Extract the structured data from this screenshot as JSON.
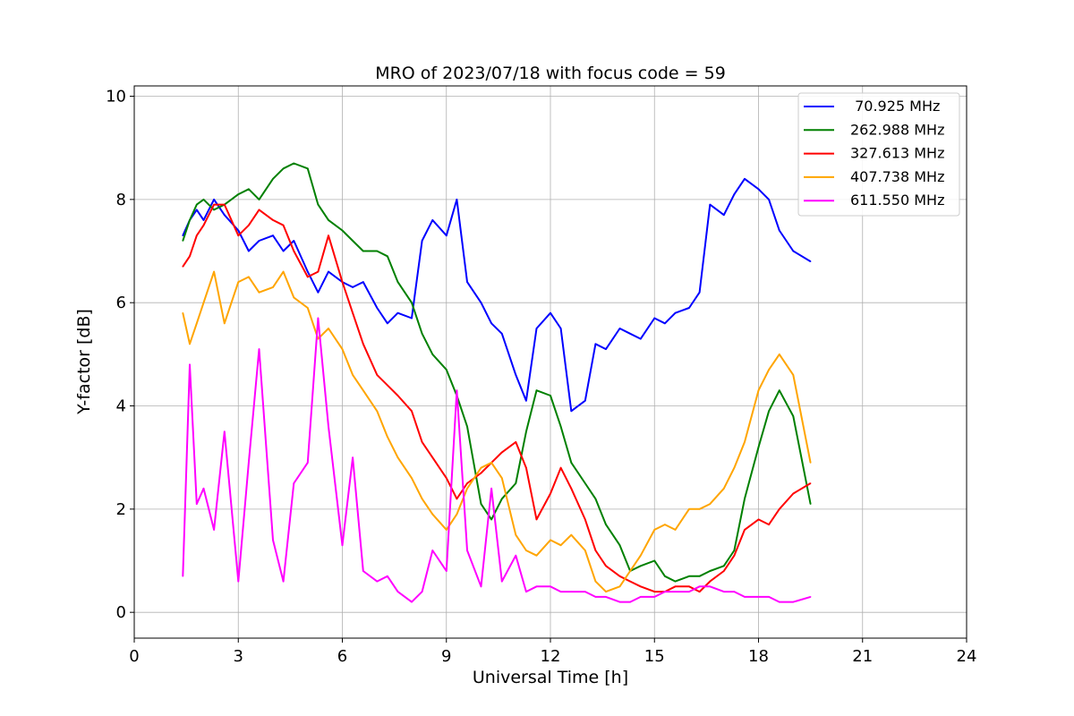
{
  "chart_data": {
    "type": "line",
    "title": "MRO of 2023/07/18 with focus code = 59",
    "xlabel": "Universal Time [h]",
    "ylabel": "Y-factor [dB]",
    "xlim": [
      0,
      24
    ],
    "ylim": [
      -0.5,
      10.2
    ],
    "xticks": [
      0,
      3,
      6,
      9,
      12,
      15,
      18,
      21,
      24
    ],
    "yticks": [
      0,
      2,
      4,
      6,
      8,
      10
    ],
    "grid": true,
    "legend_position": "top-right",
    "series": [
      {
        "name": " 70.925 MHz",
        "color": "#0000ff",
        "x": [
          1.4,
          1.6,
          1.8,
          2.0,
          2.3,
          2.6,
          3.0,
          3.3,
          3.6,
          4.0,
          4.3,
          4.6,
          5.0,
          5.3,
          5.6,
          6.0,
          6.3,
          6.6,
          7.0,
          7.3,
          7.6,
          8.0,
          8.3,
          8.6,
          9.0,
          9.3,
          9.6,
          10.0,
          10.3,
          10.6,
          11.0,
          11.3,
          11.6,
          12.0,
          12.3,
          12.6,
          13.0,
          13.3,
          13.6,
          14.0,
          14.3,
          14.6,
          15.0,
          15.3,
          15.6,
          16.0,
          16.3,
          16.6,
          17.0,
          17.3,
          17.6,
          18.0,
          18.3,
          18.6,
          19.0,
          19.5
        ],
        "y": [
          7.3,
          7.6,
          7.8,
          7.6,
          8.0,
          7.7,
          7.4,
          7.0,
          7.2,
          7.3,
          7.0,
          7.2,
          6.6,
          6.2,
          6.6,
          6.4,
          6.3,
          6.4,
          5.9,
          5.6,
          5.8,
          5.7,
          7.2,
          7.6,
          7.3,
          8.0,
          6.4,
          6.0,
          5.6,
          5.4,
          4.6,
          4.1,
          5.5,
          5.8,
          5.5,
          3.9,
          4.1,
          5.2,
          5.1,
          5.5,
          5.4,
          5.3,
          5.7,
          5.6,
          5.8,
          5.9,
          6.2,
          7.9,
          7.7,
          8.1,
          8.4,
          8.2,
          8.0,
          7.4,
          7.0,
          6.8
        ]
      },
      {
        "name": "262.988 MHz",
        "color": "#008000",
        "x": [
          1.4,
          1.6,
          1.8,
          2.0,
          2.3,
          2.6,
          3.0,
          3.3,
          3.6,
          4.0,
          4.3,
          4.6,
          5.0,
          5.3,
          5.6,
          6.0,
          6.3,
          6.6,
          7.0,
          7.3,
          7.6,
          8.0,
          8.3,
          8.6,
          9.0,
          9.3,
          9.6,
          10.0,
          10.3,
          10.6,
          11.0,
          11.3,
          11.6,
          12.0,
          12.3,
          12.6,
          13.0,
          13.3,
          13.6,
          14.0,
          14.3,
          14.6,
          15.0,
          15.3,
          15.6,
          16.0,
          16.3,
          16.6,
          17.0,
          17.3,
          17.6,
          18.0,
          18.3,
          18.6,
          19.0,
          19.5
        ],
        "y": [
          7.2,
          7.6,
          7.9,
          8.0,
          7.8,
          7.9,
          8.1,
          8.2,
          8.0,
          8.4,
          8.6,
          8.7,
          8.6,
          7.9,
          7.6,
          7.4,
          7.2,
          7.0,
          7.0,
          6.9,
          6.4,
          6.0,
          5.4,
          5.0,
          4.7,
          4.2,
          3.6,
          2.1,
          1.8,
          2.2,
          2.5,
          3.5,
          4.3,
          4.2,
          3.6,
          2.9,
          2.5,
          2.2,
          1.7,
          1.3,
          0.8,
          0.9,
          1.0,
          0.7,
          0.6,
          0.7,
          0.7,
          0.8,
          0.9,
          1.2,
          2.2,
          3.2,
          3.9,
          4.3,
          3.8,
          2.1
        ]
      },
      {
        "name": "327.613 MHz",
        "color": "#ff0000",
        "x": [
          1.4,
          1.6,
          1.8,
          2.0,
          2.3,
          2.6,
          3.0,
          3.3,
          3.6,
          4.0,
          4.3,
          4.6,
          5.0,
          5.3,
          5.6,
          6.0,
          6.3,
          6.6,
          7.0,
          7.3,
          7.6,
          8.0,
          8.3,
          8.6,
          9.0,
          9.3,
          9.6,
          10.0,
          10.3,
          10.6,
          11.0,
          11.3,
          11.6,
          12.0,
          12.3,
          12.6,
          13.0,
          13.3,
          13.6,
          14.0,
          14.3,
          14.6,
          15.0,
          15.3,
          15.6,
          16.0,
          16.3,
          16.6,
          17.0,
          17.3,
          17.6,
          18.0,
          18.3,
          18.6,
          19.0,
          19.5
        ],
        "y": [
          6.7,
          6.9,
          7.3,
          7.5,
          7.9,
          7.9,
          7.3,
          7.5,
          7.8,
          7.6,
          7.5,
          7.0,
          6.5,
          6.6,
          7.3,
          6.4,
          5.8,
          5.2,
          4.6,
          4.4,
          4.2,
          3.9,
          3.3,
          3.0,
          2.6,
          2.2,
          2.5,
          2.7,
          2.9,
          3.1,
          3.3,
          2.8,
          1.8,
          2.3,
          2.8,
          2.4,
          1.8,
          1.2,
          0.9,
          0.7,
          0.6,
          0.5,
          0.4,
          0.4,
          0.5,
          0.5,
          0.4,
          0.6,
          0.8,
          1.1,
          1.6,
          1.8,
          1.7,
          2.0,
          2.3,
          2.5
        ]
      },
      {
        "name": "407.738 MHz",
        "color": "#ffa500",
        "x": [
          1.4,
          1.6,
          1.8,
          2.0,
          2.3,
          2.6,
          3.0,
          3.3,
          3.6,
          4.0,
          4.3,
          4.6,
          5.0,
          5.3,
          5.6,
          6.0,
          6.3,
          6.6,
          7.0,
          7.3,
          7.6,
          8.0,
          8.3,
          8.6,
          9.0,
          9.3,
          9.6,
          10.0,
          10.3,
          10.6,
          11.0,
          11.3,
          11.6,
          12.0,
          12.3,
          12.6,
          13.0,
          13.3,
          13.6,
          14.0,
          14.3,
          14.6,
          15.0,
          15.3,
          15.6,
          16.0,
          16.3,
          16.6,
          17.0,
          17.3,
          17.6,
          18.0,
          18.3,
          18.6,
          19.0,
          19.5
        ],
        "y": [
          5.8,
          5.2,
          5.6,
          6.0,
          6.6,
          5.6,
          6.4,
          6.5,
          6.2,
          6.3,
          6.6,
          6.1,
          5.9,
          5.3,
          5.5,
          5.1,
          4.6,
          4.3,
          3.9,
          3.4,
          3.0,
          2.6,
          2.2,
          1.9,
          1.6,
          1.9,
          2.4,
          2.8,
          2.9,
          2.6,
          1.5,
          1.2,
          1.1,
          1.4,
          1.3,
          1.5,
          1.2,
          0.6,
          0.4,
          0.5,
          0.8,
          1.1,
          1.6,
          1.7,
          1.6,
          2.0,
          2.0,
          2.1,
          2.4,
          2.8,
          3.3,
          4.3,
          4.7,
          5.0,
          4.6,
          2.9
        ]
      },
      {
        "name": "611.550 MHz",
        "color": "#ff00ff",
        "x": [
          1.4,
          1.6,
          1.8,
          2.0,
          2.3,
          2.6,
          3.0,
          3.3,
          3.6,
          4.0,
          4.3,
          4.6,
          5.0,
          5.3,
          5.6,
          6.0,
          6.3,
          6.6,
          7.0,
          7.3,
          7.6,
          8.0,
          8.3,
          8.6,
          9.0,
          9.3,
          9.6,
          10.0,
          10.3,
          10.6,
          11.0,
          11.3,
          11.6,
          12.0,
          12.3,
          12.6,
          13.0,
          13.3,
          13.6,
          14.0,
          14.3,
          14.6,
          15.0,
          15.3,
          15.6,
          16.0,
          16.3,
          16.6,
          17.0,
          17.3,
          17.6,
          18.0,
          18.3,
          18.6,
          19.0,
          19.5
        ],
        "y": [
          0.7,
          4.8,
          2.1,
          2.4,
          1.6,
          3.5,
          0.6,
          2.9,
          5.1,
          1.4,
          0.6,
          2.5,
          2.9,
          5.7,
          3.6,
          1.3,
          3.0,
          0.8,
          0.6,
          0.7,
          0.4,
          0.2,
          0.4,
          1.2,
          0.8,
          4.3,
          1.2,
          0.5,
          2.4,
          0.6,
          1.1,
          0.4,
          0.5,
          0.5,
          0.4,
          0.4,
          0.4,
          0.3,
          0.3,
          0.2,
          0.2,
          0.3,
          0.3,
          0.4,
          0.4,
          0.4,
          0.5,
          0.5,
          0.4,
          0.4,
          0.3,
          0.3,
          0.3,
          0.2,
          0.2,
          0.3
        ]
      }
    ]
  }
}
